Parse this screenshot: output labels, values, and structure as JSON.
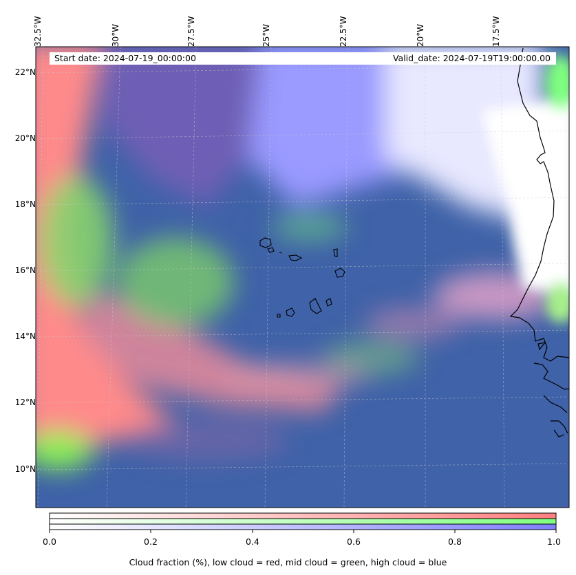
{
  "map": {
    "start_date_label": "Start date: 2024-07-19_00:00:00",
    "valid_date_label": "Valid_date: 2024-07-19T19:00:00.00",
    "longitude_labels": [
      "32.5°W",
      "30°W",
      "27.5°W",
      "25°W",
      "22.5°W",
      "20°W",
      "17.5°W"
    ],
    "latitude_labels": [
      "22°N",
      "20°N",
      "18°N",
      "16°N",
      "14°N",
      "12°N",
      "10°N"
    ],
    "layers": {
      "low_cloud_color": "#ff7f7f",
      "mid_cloud_color": "#7fff7f",
      "high_cloud_color": "#8080ff",
      "overlap_color": "#3f62a8",
      "coastline_color": "#000000",
      "land_clear_color": "#ffffff"
    },
    "gridlines": true
  },
  "colorbar": {
    "tick_labels": [
      "0.0",
      "0.2",
      "0.4",
      "0.6",
      "0.8",
      "1.0"
    ],
    "caption": "Cloud fraction (%), low cloud = red, mid cloud = green, high cloud = blue",
    "channels": [
      "red",
      "green",
      "blue"
    ]
  }
}
